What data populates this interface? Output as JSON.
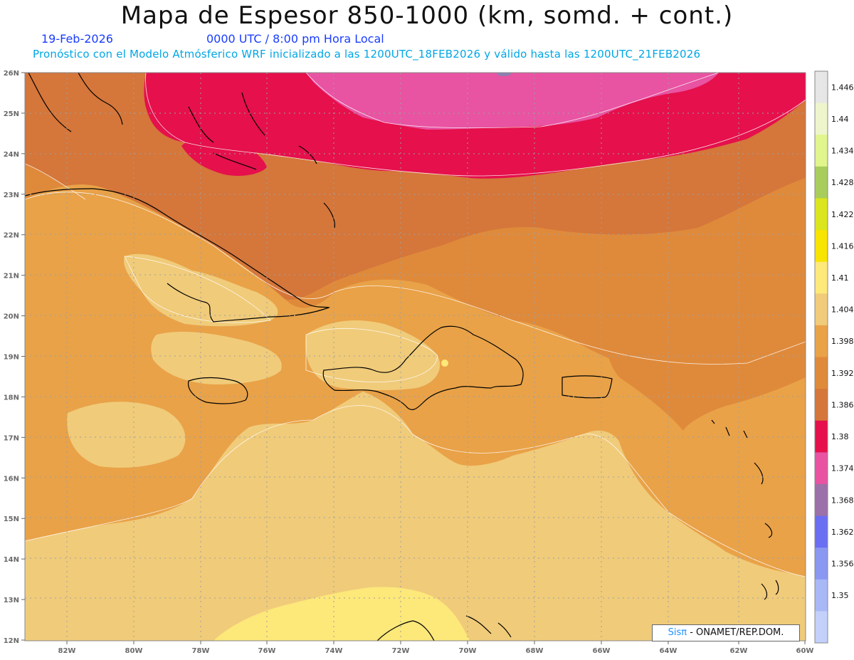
{
  "title": "Mapa de Espesor 850-1000 (km, somd. + cont.)",
  "date": "19-Feb-2026",
  "time": "0000 UTC / 8:00 pm Hora Local",
  "model_note": "Pronóstico con el Modelo Atmósferico WRF inicializado a las 1200UTC_18FEB2026 y válido hasta las  1200UTC_21FEB2026",
  "credit": {
    "brand": "Sisπ",
    "text": " - ONAMET/REP.DOM."
  },
  "colors": {
    "lt_1404": "#f0cb7a",
    "c1404_1410": "#e9a248",
    "c1392_1398": "#df8a3b",
    "c1386_1392": "#d5763a",
    "c1380_1386": "#e5104c",
    "c1374_1380": "#e853a2",
    "c1410_1416": "#fde87a",
    "coast": "#000000"
  },
  "lat_labels": [
    "26N",
    "25N",
    "24N",
    "23N",
    "22N",
    "21N",
    "20N",
    "19N",
    "18N",
    "17N",
    "16N",
    "15N",
    "14N",
    "13N",
    "12N"
  ],
  "lon_labels": [
    "82W",
    "80W",
    "78W",
    "76W",
    "74W",
    "72W",
    "70W",
    "68W",
    "66W",
    "64W",
    "62W",
    "60W"
  ],
  "colorbar": {
    "labels": [
      "1.446",
      "1.44",
      "1.434",
      "1.428",
      "1.422",
      "1.416",
      "1.41",
      "1.404",
      "1.398",
      "1.392",
      "1.386",
      "1.38",
      "1.374",
      "1.368",
      "1.362",
      "1.356",
      "1.35"
    ],
    "colors": [
      "#e6e6e6",
      "#eef5cc",
      "#e0f58c",
      "#a8cd5d",
      "#dbe51e",
      "#f7e400",
      "#fde87a",
      "#f0cb7a",
      "#e9a248",
      "#df8a3b",
      "#d5763a",
      "#e5104c",
      "#e853a2",
      "#9c70a8",
      "#6a6ef2",
      "#8a98f2",
      "#a8b8f7",
      "#c3d0fa"
    ]
  }
}
